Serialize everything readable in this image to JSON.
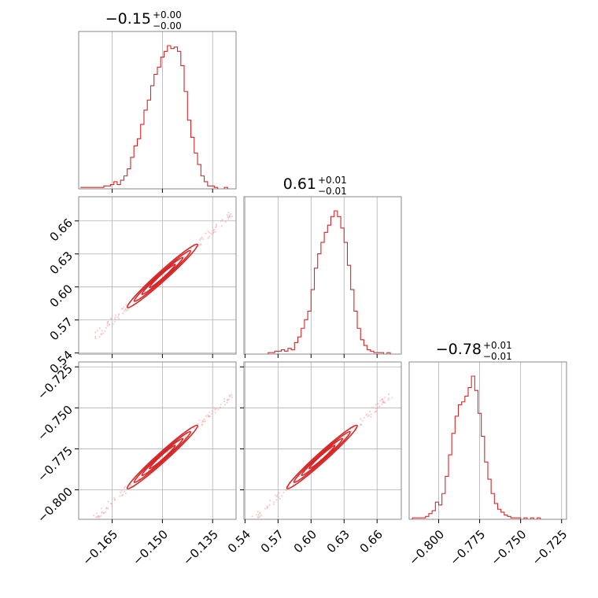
{
  "chart_data": {
    "type": "corner",
    "color": "#d62728",
    "grid": true,
    "parameters": [
      {
        "title_value": "−0.15",
        "title_plus": "+0.00",
        "title_minus": "−0.00",
        "median": -0.15,
        "range": [
          -0.175,
          -0.128
        ],
        "ticks": [
          -0.165,
          -0.15,
          -0.135
        ],
        "tick_labels": [
          "−0.165",
          "−0.150",
          "−0.135"
        ]
      },
      {
        "title_value": "0.61",
        "title_plus": "+0.01",
        "title_minus": "−0.01",
        "median": 0.61,
        "range": [
          0.539,
          0.682
        ],
        "ticks": [
          0.54,
          0.57,
          0.6,
          0.63,
          0.66
        ],
        "tick_labels": [
          "0.54",
          "0.57",
          "0.60",
          "0.63",
          "0.66"
        ]
      },
      {
        "title_value": "−0.78",
        "title_plus": "+0.01",
        "title_minus": "−0.01",
        "median": -0.78,
        "range": [
          -0.818,
          -0.722
        ],
        "ticks": [
          -0.8,
          -0.775,
          -0.75,
          -0.725
        ],
        "tick_labels": [
          "−0.800",
          "−0.775",
          "−0.750",
          "−0.725"
        ]
      }
    ],
    "histograms": [
      {
        "parameter": 0,
        "bin_edges_start": -0.1745,
        "bin_width": 0.001,
        "counts": [
          1,
          1,
          1,
          1,
          1,
          1,
          1,
          2,
          2,
          3,
          5,
          3,
          6,
          9,
          14,
          22,
          30,
          35,
          45,
          55,
          62,
          72,
          80,
          85,
          92,
          96,
          100,
          98,
          99,
          96,
          86,
          68,
          48,
          36,
          25,
          17,
          9,
          5,
          2,
          2,
          1,
          0,
          0,
          1,
          0,
          0,
          0
        ]
      },
      {
        "parameter": 1,
        "bin_edges_start": 0.54,
        "bin_width": 0.003,
        "counts": [
          0,
          0,
          0,
          0,
          0,
          0,
          0,
          1,
          1,
          2,
          2,
          3,
          2,
          4,
          3,
          8,
          12,
          18,
          24,
          30,
          45,
          60,
          70,
          78,
          85,
          90,
          96,
          100,
          96,
          88,
          78,
          62,
          45,
          30,
          18,
          10,
          6,
          3,
          2,
          1,
          1,
          1,
          0,
          1,
          0,
          0,
          0
        ]
      },
      {
        "parameter": 2,
        "bin_edges_start": -0.818,
        "bin_width": 0.002,
        "counts": [
          0,
          1,
          1,
          1,
          1,
          2,
          4,
          6,
          12,
          10,
          18,
          30,
          45,
          60,
          72,
          80,
          82,
          86,
          92,
          100,
          90,
          74,
          58,
          40,
          28,
          18,
          11,
          7,
          5,
          3,
          2,
          1,
          1,
          1,
          0,
          1,
          0,
          1,
          0,
          1,
          0,
          0,
          0,
          0,
          0,
          0,
          0,
          0,
          0
        ]
      }
    ],
    "pair_panels": [
      {
        "x_param": 0,
        "y_param": 1
      },
      {
        "x_param": 0,
        "y_param": 2
      },
      {
        "x_param": 1,
        "y_param": 2
      }
    ]
  }
}
